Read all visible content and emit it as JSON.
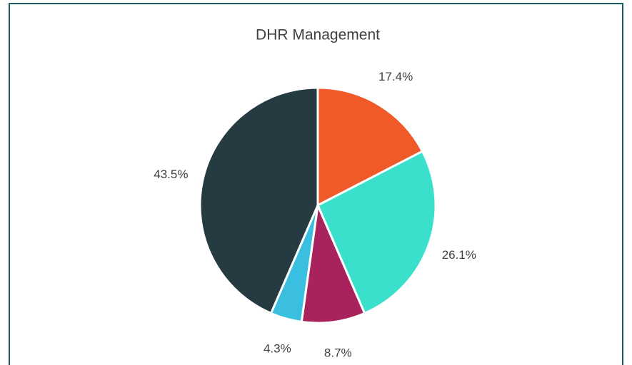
{
  "chart_data": {
    "type": "pie",
    "title": "DHR Management",
    "values": [
      17.4,
      26.1,
      8.7,
      4.3,
      43.5
    ],
    "value_labels": [
      "17.4%",
      "26.1%",
      "8.7%",
      "4.3%",
      "43.5%"
    ],
    "colors": [
      "#f05a28",
      "#3be0cc",
      "#a8235e",
      "#3bbfe0",
      "#263a42"
    ]
  }
}
